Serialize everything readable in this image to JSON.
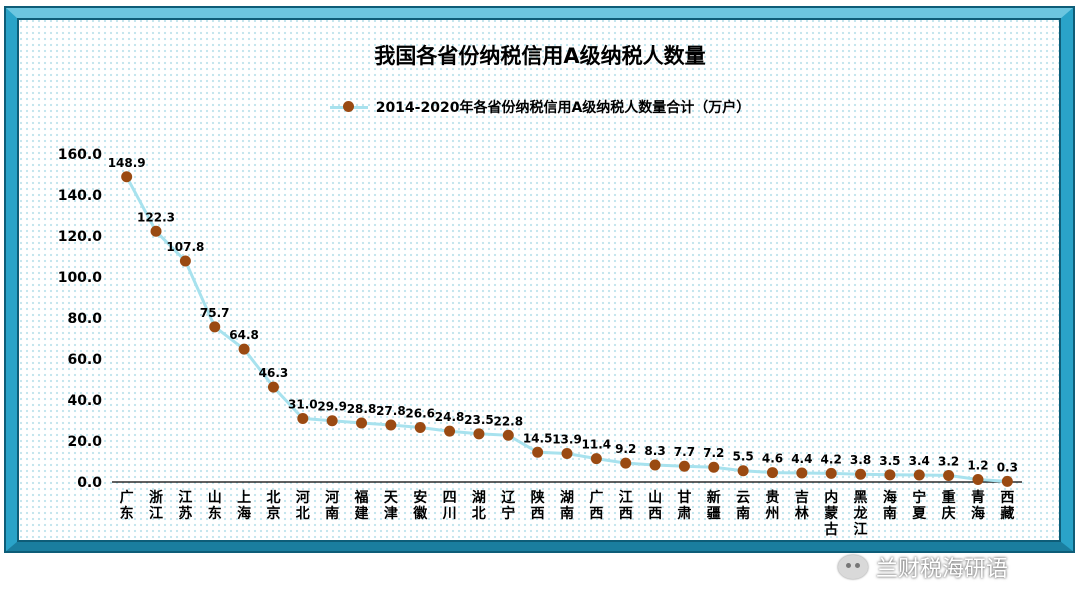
{
  "title": "我国各省份纳税信用A级纳税人数量",
  "watermark": {
    "text": "兰财税海研语",
    "icon": "wechat-icon"
  },
  "colors": {
    "frame": "#2aa3c8",
    "frame_dark": "#0e5d78",
    "line": "#a8e2ee",
    "marker": "#9a4a12",
    "dots_bg": "#bfe3ec"
  },
  "chart_data": {
    "type": "line",
    "categories": [
      "广东",
      "浙江",
      "江苏",
      "山东",
      "上海",
      "北京",
      "河北",
      "河南",
      "福建",
      "天津",
      "安徽",
      "四川",
      "湖北",
      "辽宁",
      "陕西",
      "湖南",
      "广西",
      "江西",
      "山西",
      "甘肃",
      "新疆",
      "云南",
      "贵州",
      "吉林",
      "内蒙古",
      "黑龙江",
      "海南",
      "宁夏",
      "重庆",
      "青海",
      "西藏"
    ],
    "series": [
      {
        "name": "2014-2020年各省份纳税信用A级纳税人数量合计（万户）",
        "values": [
          148.9,
          122.3,
          107.8,
          75.7,
          64.8,
          46.3,
          31.0,
          29.9,
          28.8,
          27.8,
          26.6,
          24.8,
          23.5,
          22.8,
          14.5,
          13.9,
          11.4,
          9.2,
          8.3,
          7.7,
          7.2,
          5.5,
          4.6,
          4.4,
          4.2,
          3.8,
          3.5,
          3.4,
          3.2,
          1.2,
          0.3
        ]
      }
    ],
    "value_labels": [
      "148.9",
      "122.3",
      "107.8",
      "75.7",
      "64.8",
      "46.3",
      "31.0",
      "29.9",
      "28.8",
      "27.8",
      "26.6",
      "24.8",
      "23.5",
      "22.8",
      "14.5",
      "13.9",
      "11.4",
      "9.2",
      "8.3",
      "7.7",
      "7.2",
      "5.5",
      "4.6",
      "4.4",
      "4.2",
      "3.8",
      "3.5",
      "3.4",
      "3.2",
      "1.2",
      "0.3"
    ],
    "yticks": [
      "0.0",
      "20.0",
      "40.0",
      "60.0",
      "80.0",
      "100.0",
      "120.0",
      "140.0",
      "160.0"
    ],
    "ylim": [
      0,
      160
    ],
    "grid": false,
    "legend_position": "top",
    "xlabel": "",
    "ylabel": ""
  }
}
